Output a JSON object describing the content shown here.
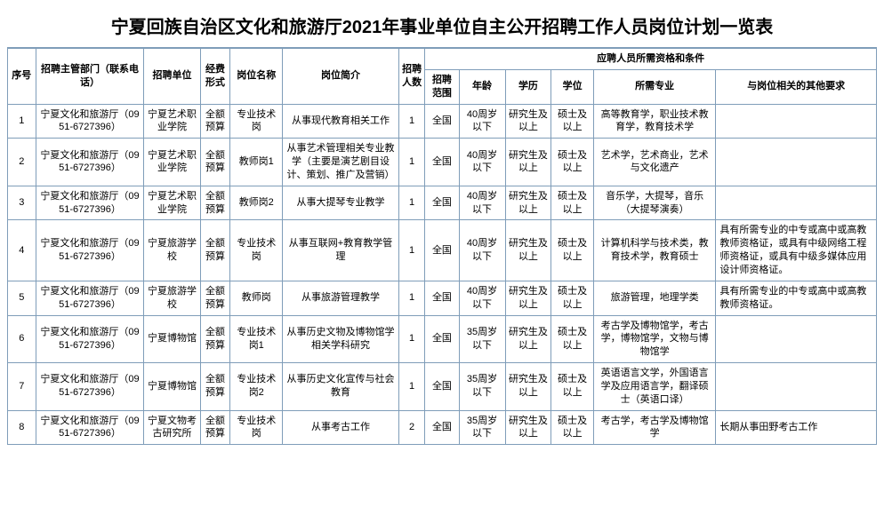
{
  "title": "宁夏回族自治区文化和旅游厅2021年事业单位自主公开招聘工作人员岗位计划一览表",
  "headers": {
    "seq": "序号",
    "dept": "招聘主管部门（联系电话）",
    "unit": "招聘单位",
    "fund": "经费形式",
    "pos": "岗位名称",
    "brief": "岗位简介",
    "cnt": "招聘人数",
    "qualGroup": "应聘人员所需资格和条件",
    "scope": "招聘范围",
    "age": "年龄",
    "edu": "学历",
    "deg": "学位",
    "major": "所需专业",
    "other": "与岗位相关的其他要求"
  },
  "rows": [
    {
      "seq": "1",
      "dept": "宁夏文化和旅游厅（0951-6727396）",
      "unit": "宁夏艺术职业学院",
      "fund": "全额预算",
      "pos": "专业技术岗",
      "brief": "从事现代教育相关工作",
      "cnt": "1",
      "scope": "全国",
      "age": "40周岁以下",
      "edu": "研究生及以上",
      "deg": "硕士及以上",
      "major": "高等教育学，职业技术教育学，教育技术学",
      "other": ""
    },
    {
      "seq": "2",
      "dept": "宁夏文化和旅游厅（0951-6727396）",
      "unit": "宁夏艺术职业学院",
      "fund": "全额预算",
      "pos": "教师岗1",
      "brief": "从事艺术管理相关专业教学（主要是演艺剧目设计、策划、推广及营销）",
      "cnt": "1",
      "scope": "全国",
      "age": "40周岁以下",
      "edu": "研究生及以上",
      "deg": "硕士及以上",
      "major": "艺术学，艺术商业，艺术与文化遗产",
      "other": ""
    },
    {
      "seq": "3",
      "dept": "宁夏文化和旅游厅（0951-6727396）",
      "unit": "宁夏艺术职业学院",
      "fund": "全额预算",
      "pos": "教师岗2",
      "brief": "从事大提琴专业教学",
      "cnt": "1",
      "scope": "全国",
      "age": "40周岁以下",
      "edu": "研究生及以上",
      "deg": "硕士及以上",
      "major": "音乐学，大提琴，音乐（大提琴演奏）",
      "other": ""
    },
    {
      "seq": "4",
      "dept": "宁夏文化和旅游厅（0951-6727396）",
      "unit": "宁夏旅游学校",
      "fund": "全额预算",
      "pos": "专业技术岗",
      "brief": "从事互联网+教育教学管理",
      "cnt": "1",
      "scope": "全国",
      "age": "40周岁以下",
      "edu": "研究生及以上",
      "deg": "硕士及以上",
      "major": "计算机科学与技术类，教育技术学，教育硕士",
      "other": "具有所需专业的中专或高中或高教教师资格证，或具有中级网络工程师资格证，或具有中级多媒体应用设计师资格证。"
    },
    {
      "seq": "5",
      "dept": "宁夏文化和旅游厅（0951-6727396）",
      "unit": "宁夏旅游学校",
      "fund": "全额预算",
      "pos": "教师岗",
      "brief": "从事旅游管理教学",
      "cnt": "1",
      "scope": "全国",
      "age": "40周岁以下",
      "edu": "研究生及以上",
      "deg": "硕士及以上",
      "major": "旅游管理，地理学类",
      "other": "具有所需专业的中专或高中或高教教师资格证。"
    },
    {
      "seq": "6",
      "dept": "宁夏文化和旅游厅（0951-6727396）",
      "unit": "宁夏博物馆",
      "fund": "全额预算",
      "pos": "专业技术岗1",
      "brief": "从事历史文物及博物馆学相关学科研究",
      "cnt": "1",
      "scope": "全国",
      "age": "35周岁以下",
      "edu": "研究生及以上",
      "deg": "硕士及以上",
      "major": "考古学及博物馆学，考古学，博物馆学，文物与博物馆学",
      "other": ""
    },
    {
      "seq": "7",
      "dept": "宁夏文化和旅游厅（0951-6727396）",
      "unit": "宁夏博物馆",
      "fund": "全额预算",
      "pos": "专业技术岗2",
      "brief": "从事历史文化宣传与社会教育",
      "cnt": "1",
      "scope": "全国",
      "age": "35周岁以下",
      "edu": "研究生及以上",
      "deg": "硕士及以上",
      "major": "英语语言文学，外国语言学及应用语言学，翻译硕士（英语口译）",
      "other": ""
    },
    {
      "seq": "8",
      "dept": "宁夏文化和旅游厅（0951-6727396）",
      "unit": "宁夏文物考古研究所",
      "fund": "全额预算",
      "pos": "专业技术岗",
      "brief": "从事考古工作",
      "cnt": "2",
      "scope": "全国",
      "age": "35周岁以下",
      "edu": "研究生及以上",
      "deg": "硕士及以上",
      "major": "考古学，考古学及博物馆学",
      "other": "长期从事田野考古工作"
    }
  ]
}
